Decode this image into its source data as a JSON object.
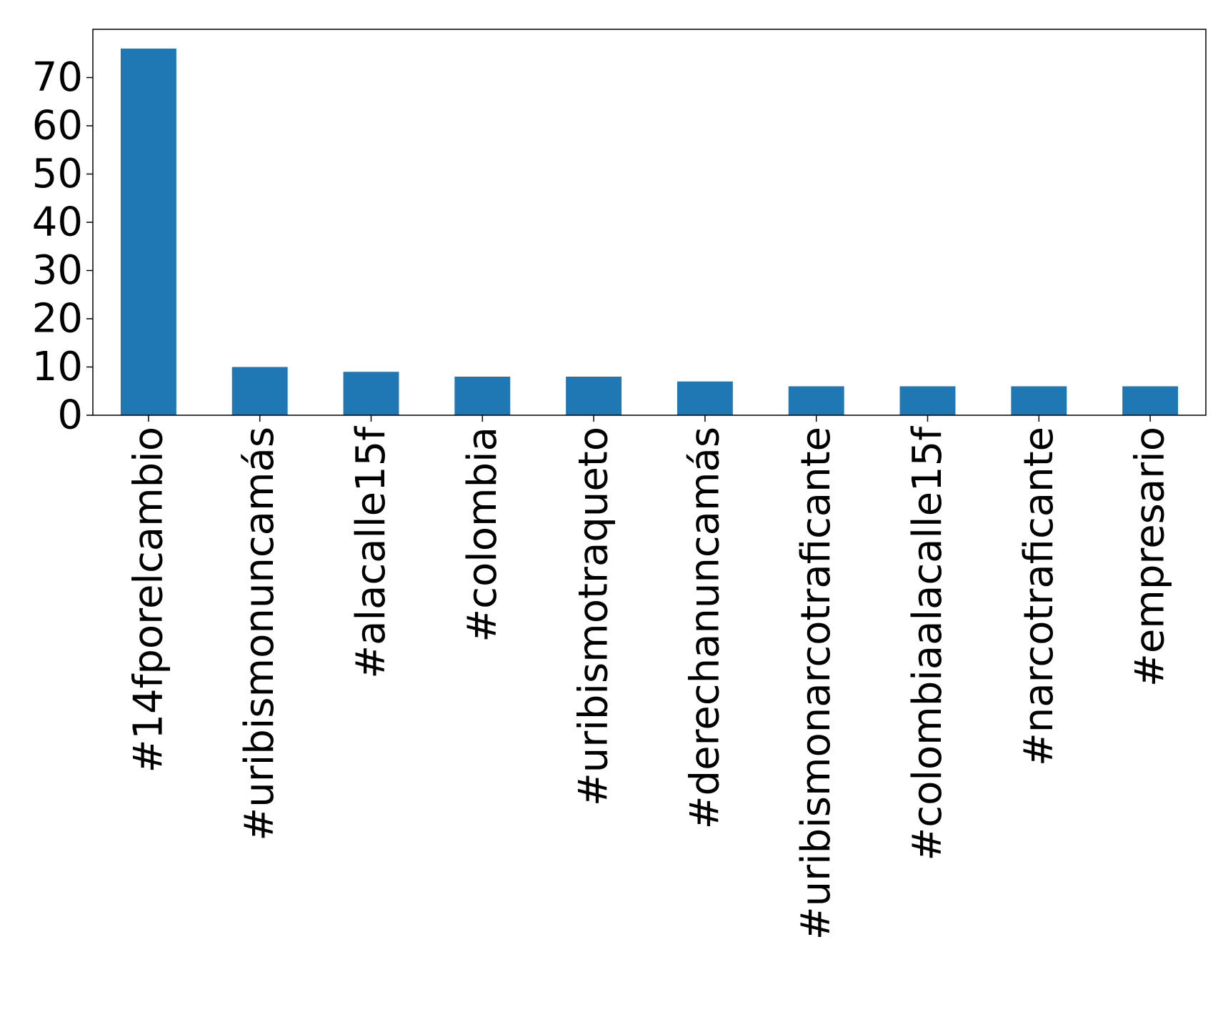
{
  "chart_data": {
    "type": "bar",
    "title": "",
    "xlabel": "",
    "ylabel": "",
    "categories": [
      "#14fporelcambio",
      "#uribismonuncamás",
      "#alacalle15f",
      "#colombia",
      "#uribismotraqueto",
      "#derechanuncamás",
      "#uribismonarcotraficante",
      "#colombiaalacalle15f",
      "#narcotraficante",
      "#empresario"
    ],
    "values": [
      76,
      10,
      9,
      8,
      8,
      7,
      6,
      6,
      6,
      6
    ],
    "ylim": [
      0,
      80
    ],
    "yticks": [
      0,
      10,
      20,
      30,
      40,
      50,
      60,
      70
    ],
    "grid": false,
    "legend": "none",
    "bar_color": "#1f77b4"
  }
}
